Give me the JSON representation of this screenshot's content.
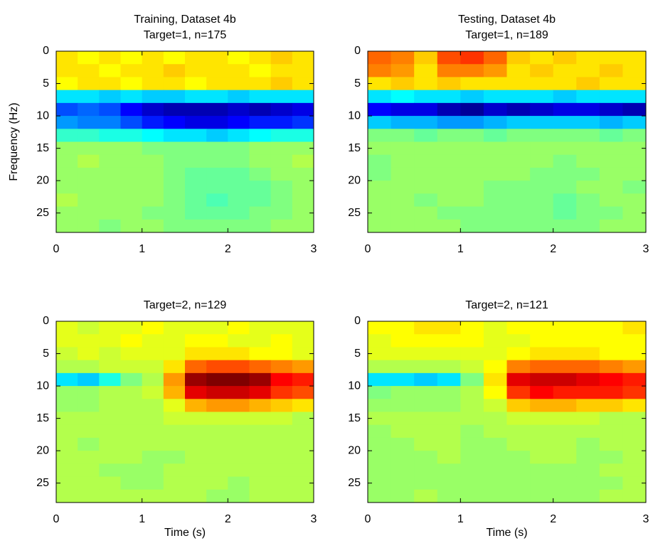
{
  "chart_data": [
    {
      "type": "heatmap",
      "title": [
        "Training, Dataset 4b",
        "Target=1, n=175"
      ],
      "ylabel": "Frequency (Hz)",
      "x": [
        0,
        0.25,
        0.5,
        0.75,
        1,
        1.25,
        1.5,
        1.75,
        2,
        2.25,
        2.5,
        2.75,
        3
      ],
      "y": [
        0,
        2,
        4,
        6,
        8,
        10,
        12,
        14,
        16,
        18,
        20,
        22,
        24,
        26,
        28
      ],
      "xlim": [
        0,
        3
      ],
      "ylim": [
        0,
        28
      ],
      "xticks": [
        0,
        1,
        2,
        3
      ],
      "yticks": [
        0,
        5,
        10,
        15,
        20,
        25
      ],
      "clim": [
        -1,
        1
      ],
      "colormap": "jet",
      "z": [
        [
          0.3,
          0.25,
          0.3,
          0.25,
          0.3,
          0.25,
          0.3,
          0.3,
          0.25,
          0.3,
          0.35,
          0.3
        ],
        [
          0.3,
          0.3,
          0.25,
          0.3,
          0.3,
          0.35,
          0.3,
          0.3,
          0.3,
          0.25,
          0.3,
          0.3
        ],
        [
          0.25,
          0.3,
          0.3,
          0.25,
          0.3,
          0.3,
          0.25,
          0.3,
          0.3,
          0.3,
          0.35,
          0.3
        ],
        [
          -0.3,
          -0.3,
          -0.35,
          -0.3,
          -0.35,
          -0.35,
          -0.3,
          -0.3,
          -0.35,
          -0.3,
          -0.3,
          -0.3
        ],
        [
          -0.6,
          -0.55,
          -0.6,
          -0.75,
          -0.85,
          -0.9,
          -0.9,
          -0.9,
          -0.85,
          -0.9,
          -0.85,
          -0.8
        ],
        [
          -0.45,
          -0.5,
          -0.5,
          -0.6,
          -0.7,
          -0.75,
          -0.8,
          -0.8,
          -0.75,
          -0.7,
          -0.7,
          -0.65
        ],
        [
          -0.15,
          -0.15,
          -0.2,
          -0.2,
          -0.25,
          -0.3,
          -0.3,
          -0.35,
          -0.3,
          -0.25,
          -0.2,
          -0.2
        ],
        [
          0.05,
          0.05,
          0.05,
          0.05,
          0,
          0,
          0,
          0,
          0,
          0.05,
          0.05,
          0.05
        ],
        [
          0.05,
          0.1,
          0.05,
          0.05,
          0.05,
          0,
          0,
          0,
          0,
          0.05,
          0.05,
          0.1
        ],
        [
          0.05,
          0.05,
          0.05,
          0.05,
          0.05,
          0,
          -0.05,
          -0.05,
          -0.05,
          0,
          0.05,
          0.05
        ],
        [
          0.05,
          0.05,
          0.05,
          0.05,
          0.05,
          0,
          -0.05,
          -0.05,
          -0.05,
          -0.05,
          0,
          0.05
        ],
        [
          0.1,
          0.05,
          0.05,
          0.05,
          0.05,
          0,
          -0.05,
          -0.1,
          -0.05,
          -0.05,
          0,
          0.05
        ],
        [
          0.05,
          0.05,
          0.05,
          0.05,
          0,
          0,
          -0.05,
          -0.05,
          -0.05,
          0,
          0,
          0.05
        ],
        [
          0.05,
          0.05,
          0,
          0.05,
          0.05,
          0,
          0,
          0,
          0,
          0,
          0.05,
          0.05
        ]
      ]
    },
    {
      "type": "heatmap",
      "title": [
        "Testing, Dataset 4b",
        "Target=1, n=189"
      ],
      "x": [
        0,
        0.25,
        0.5,
        0.75,
        1,
        1.25,
        1.5,
        1.75,
        2,
        2.25,
        2.5,
        2.75,
        3
      ],
      "y": [
        0,
        2,
        4,
        6,
        8,
        10,
        12,
        14,
        16,
        18,
        20,
        22,
        24,
        26,
        28
      ],
      "xlim": [
        0,
        3
      ],
      "ylim": [
        0,
        28
      ],
      "xticks": [
        0,
        1,
        2,
        3
      ],
      "yticks": [
        0,
        5,
        10,
        15,
        20,
        25
      ],
      "clim": [
        -1,
        1
      ],
      "colormap": "jet",
      "z": [
        [
          0.55,
          0.5,
          0.35,
          0.6,
          0.65,
          0.55,
          0.35,
          0.3,
          0.35,
          0.3,
          0.3,
          0.3
        ],
        [
          0.5,
          0.45,
          0.3,
          0.5,
          0.5,
          0.45,
          0.3,
          0.35,
          0.3,
          0.3,
          0.35,
          0.3
        ],
        [
          0.3,
          0.35,
          0.3,
          0.35,
          0.3,
          0.3,
          0.3,
          0.3,
          0.3,
          0.35,
          0.3,
          0.3
        ],
        [
          -0.3,
          -0.25,
          -0.3,
          -0.3,
          -0.35,
          -0.3,
          -0.3,
          -0.3,
          -0.35,
          -0.3,
          -0.3,
          -0.3
        ],
        [
          -0.75,
          -0.8,
          -0.8,
          -0.9,
          -0.95,
          -0.85,
          -0.9,
          -0.85,
          -0.8,
          -0.8,
          -0.85,
          -0.9
        ],
        [
          -0.35,
          -0.4,
          -0.4,
          -0.45,
          -0.45,
          -0.4,
          -0.35,
          -0.35,
          -0.35,
          -0.35,
          -0.4,
          -0.35
        ],
        [
          0,
          0,
          -0.05,
          0,
          0,
          -0.05,
          0,
          0,
          0,
          0,
          -0.05,
          0
        ],
        [
          0.05,
          0.05,
          0.05,
          0.05,
          0.05,
          0.05,
          0.05,
          0.05,
          0.05,
          0.05,
          0.05,
          0.05
        ],
        [
          0,
          0.05,
          0.05,
          0.05,
          0.05,
          0.05,
          0.05,
          0.05,
          0,
          0.05,
          0.05,
          0.05
        ],
        [
          0,
          0.05,
          0.05,
          0.05,
          0.05,
          0.05,
          0.05,
          0,
          0,
          0,
          0.05,
          0.05
        ],
        [
          0.05,
          0.05,
          0.05,
          0.05,
          0.05,
          0,
          0,
          0,
          0,
          0.05,
          0.05,
          0
        ],
        [
          0.05,
          0.05,
          0,
          0.05,
          0.05,
          0,
          0,
          0,
          -0.05,
          0,
          0.05,
          0.05
        ],
        [
          0.05,
          0.05,
          0.05,
          0,
          0,
          0,
          0,
          0,
          -0.05,
          0,
          0,
          0.05
        ],
        [
          0.05,
          0.05,
          0.05,
          0.05,
          0,
          0,
          0,
          0,
          0,
          0,
          0.05,
          0.05
        ]
      ]
    },
    {
      "type": "heatmap",
      "title": [
        "Target=2, n=129"
      ],
      "xlabel": "Time (s)",
      "x": [
        0,
        0.25,
        0.5,
        0.75,
        1,
        1.25,
        1.5,
        1.75,
        2,
        2.25,
        2.5,
        2.75,
        3
      ],
      "y": [
        0,
        2,
        4,
        6,
        8,
        10,
        12,
        14,
        16,
        18,
        20,
        22,
        24,
        26,
        28
      ],
      "xlim": [
        0,
        3
      ],
      "ylim": [
        0,
        28
      ],
      "xticks": [
        0,
        1,
        2,
        3
      ],
      "yticks": [
        0,
        5,
        10,
        15,
        20,
        25
      ],
      "clim": [
        -1,
        1
      ],
      "colormap": "jet",
      "z": [
        [
          0.2,
          0.15,
          0.2,
          0.2,
          0.25,
          0.2,
          0.2,
          0.2,
          0.25,
          0.2,
          0.2,
          0.2
        ],
        [
          0.2,
          0.2,
          0.2,
          0.25,
          0.2,
          0.2,
          0.25,
          0.25,
          0.2,
          0.2,
          0.25,
          0.2
        ],
        [
          0.15,
          0.2,
          0.15,
          0.2,
          0.2,
          0.2,
          0.3,
          0.3,
          0.3,
          0.25,
          0.25,
          0.2
        ],
        [
          0.1,
          0.1,
          0.15,
          0.15,
          0.15,
          0.3,
          0.55,
          0.6,
          0.6,
          0.55,
          0.5,
          0.45
        ],
        [
          -0.3,
          -0.35,
          -0.2,
          0,
          0.1,
          0.45,
          0.95,
          1,
          1,
          0.95,
          0.75,
          0.7
        ],
        [
          0.05,
          0.05,
          0.1,
          0.1,
          0.15,
          0.4,
          0.8,
          0.85,
          0.85,
          0.8,
          0.65,
          0.6
        ],
        [
          0.05,
          0.05,
          0.1,
          0.1,
          0.1,
          0.2,
          0.4,
          0.45,
          0.45,
          0.4,
          0.35,
          0.3
        ],
        [
          0.1,
          0.1,
          0.1,
          0.1,
          0.1,
          0.15,
          0.15,
          0.15,
          0.15,
          0.15,
          0.15,
          0.1
        ],
        [
          0.1,
          0.1,
          0.1,
          0.1,
          0.1,
          0.1,
          0.1,
          0.1,
          0.1,
          0.1,
          0.1,
          0.1
        ],
        [
          0.1,
          0.05,
          0.1,
          0.1,
          0.1,
          0.1,
          0.1,
          0.1,
          0.1,
          0.1,
          0.1,
          0.1
        ],
        [
          0.1,
          0.1,
          0.1,
          0.1,
          0.05,
          0.05,
          0.1,
          0.1,
          0.1,
          0.1,
          0.1,
          0.1
        ],
        [
          0.1,
          0.1,
          0.05,
          0.05,
          0.05,
          0.1,
          0.1,
          0.1,
          0.1,
          0.1,
          0.1,
          0.1
        ],
        [
          0.1,
          0.1,
          0.1,
          0.05,
          0.05,
          0.1,
          0.1,
          0.1,
          0.05,
          0.1,
          0.1,
          0.1
        ],
        [
          0.1,
          0.1,
          0.1,
          0.1,
          0.1,
          0.1,
          0.1,
          0.05,
          0.05,
          0.1,
          0.1,
          0.1
        ]
      ]
    },
    {
      "type": "heatmap",
      "title": [
        "Target=2, n=121"
      ],
      "xlabel": "Time (s)",
      "x": [
        0,
        0.25,
        0.5,
        0.75,
        1,
        1.25,
        1.5,
        1.75,
        2,
        2.25,
        2.5,
        2.75,
        3
      ],
      "y": [
        0,
        2,
        4,
        6,
        8,
        10,
        12,
        14,
        16,
        18,
        20,
        22,
        24,
        26,
        28
      ],
      "xlim": [
        0,
        3
      ],
      "ylim": [
        0,
        28
      ],
      "xticks": [
        0,
        1,
        2,
        3
      ],
      "yticks": [
        0,
        5,
        10,
        15,
        20,
        25
      ],
      "clim": [
        -1,
        1
      ],
      "colormap": "jet",
      "z": [
        [
          0.25,
          0.25,
          0.3,
          0.3,
          0.25,
          0.2,
          0.25,
          0.25,
          0.25,
          0.25,
          0.25,
          0.3
        ],
        [
          0.2,
          0.25,
          0.25,
          0.25,
          0.25,
          0.2,
          0.2,
          0.25,
          0.25,
          0.25,
          0.25,
          0.25
        ],
        [
          0.2,
          0.2,
          0.2,
          0.2,
          0.2,
          0.2,
          0.25,
          0.3,
          0.3,
          0.3,
          0.25,
          0.25
        ],
        [
          0.1,
          0.1,
          0.1,
          0.1,
          0.15,
          0.25,
          0.5,
          0.55,
          0.55,
          0.55,
          0.5,
          0.45
        ],
        [
          -0.3,
          -0.3,
          -0.35,
          -0.3,
          0,
          0.3,
          0.8,
          0.85,
          0.85,
          0.8,
          0.75,
          0.7
        ],
        [
          0,
          0.05,
          0.05,
          0.05,
          0.1,
          0.25,
          0.65,
          0.75,
          0.7,
          0.7,
          0.7,
          0.65
        ],
        [
          0.05,
          0.05,
          0.05,
          0.05,
          0.1,
          0.15,
          0.35,
          0.4,
          0.4,
          0.35,
          0.35,
          0.3
        ],
        [
          0.1,
          0.1,
          0.1,
          0.1,
          0.1,
          0.1,
          0.15,
          0.15,
          0.15,
          0.15,
          0.1,
          0.1
        ],
        [
          0.05,
          0.1,
          0.1,
          0.1,
          0.05,
          0.1,
          0.1,
          0.1,
          0.1,
          0.1,
          0.1,
          0.1
        ],
        [
          0.05,
          0.05,
          0.1,
          0.1,
          0.05,
          0.05,
          0.1,
          0.1,
          0.1,
          0.05,
          0.1,
          0.1
        ],
        [
          0.05,
          0.05,
          0.05,
          0.1,
          0.05,
          0.05,
          0.05,
          0.1,
          0.1,
          0.05,
          0.05,
          0.1
        ],
        [
          0.05,
          0.05,
          0.05,
          0.05,
          0.05,
          0.05,
          0.05,
          0.05,
          0.05,
          0.05,
          0.1,
          0.1
        ],
        [
          0.05,
          0.05,
          0.05,
          0.05,
          0.05,
          0.05,
          0.05,
          0.05,
          0.05,
          0.05,
          0.05,
          0.1
        ],
        [
          0.05,
          0.05,
          0.1,
          0.05,
          0.05,
          0.05,
          0.05,
          0.05,
          0.05,
          0.05,
          0.1,
          0.1
        ]
      ]
    }
  ]
}
